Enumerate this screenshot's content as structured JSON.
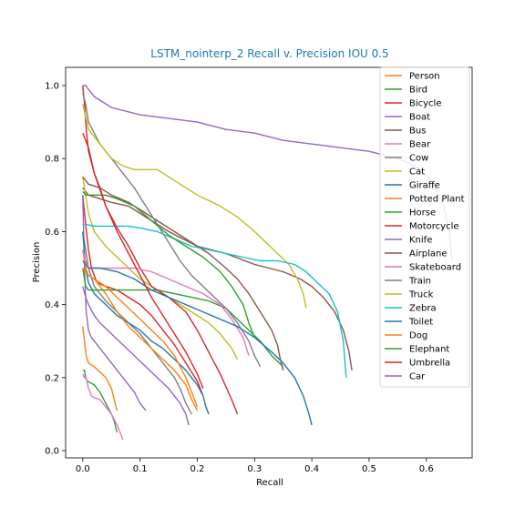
{
  "chart_data": {
    "type": "line",
    "title": "LSTM_nointerp_2 Recall v. Precision IOU 0.5",
    "xlabel": "Recall",
    "ylabel": "Precision",
    "xlim": [
      -0.03,
      0.68
    ],
    "ylim": [
      -0.02,
      1.05
    ],
    "xticks": [
      0.0,
      0.1,
      0.2,
      0.3,
      0.4,
      0.5,
      0.6
    ],
    "xtick_labels": [
      "0.0",
      "0.1",
      "0.2",
      "0.3",
      "0.4",
      "0.5",
      "0.6"
    ],
    "yticks": [
      0.0,
      0.2,
      0.4,
      0.6,
      0.8,
      1.0
    ],
    "ytick_labels": [
      "0.0",
      "0.2",
      "0.4",
      "0.6",
      "0.8",
      "1.0"
    ],
    "grid": false,
    "legend_position": "upper-right",
    "title_color": "#1f77b4",
    "series": [
      {
        "name": "Person",
        "color": "#ff7f0e",
        "x": [
          0.0,
          0.003,
          0.006,
          0.01,
          0.02,
          0.03,
          0.04,
          0.05,
          0.055,
          0.058,
          0.06
        ],
        "y": [
          0.34,
          0.3,
          0.26,
          0.24,
          0.23,
          0.215,
          0.2,
          0.17,
          0.14,
          0.12,
          0.11
        ]
      },
      {
        "name": "Bird",
        "color": "#2ca02c",
        "x": [
          0.0,
          0.003,
          0.005,
          0.008,
          0.02,
          0.03,
          0.04,
          0.05,
          0.055,
          0.058,
          0.06
        ],
        "y": [
          0.22,
          0.22,
          0.2,
          0.19,
          0.18,
          0.16,
          0.13,
          0.1,
          0.08,
          0.06,
          0.05
        ]
      },
      {
        "name": "Bicycle",
        "color": "#d62728",
        "x": [
          0.0,
          0.005,
          0.01,
          0.015,
          0.025,
          0.04,
          0.06,
          0.08,
          0.1,
          0.12,
          0.14,
          0.16,
          0.18,
          0.2,
          0.21
        ],
        "y": [
          0.7,
          0.62,
          0.55,
          0.5,
          0.46,
          0.45,
          0.44,
          0.42,
          0.4,
          0.37,
          0.33,
          0.29,
          0.24,
          0.19,
          0.15
        ]
      },
      {
        "name": "Boat",
        "color": "#9467bd",
        "x": [
          0.0,
          0.003,
          0.006,
          0.01,
          0.015,
          0.02,
          0.03,
          0.05,
          0.07,
          0.09,
          0.1,
          0.11
        ],
        "y": [
          0.7,
          0.5,
          0.38,
          0.33,
          0.31,
          0.3,
          0.28,
          0.24,
          0.2,
          0.16,
          0.13,
          0.11
        ]
      },
      {
        "name": "Bus",
        "color": "#8c564b",
        "x": [
          0.0,
          0.005,
          0.01,
          0.03,
          0.05,
          0.08,
          0.1,
          0.15,
          0.2,
          0.25,
          0.3,
          0.35,
          0.38,
          0.4,
          0.42,
          0.44,
          0.455,
          0.465,
          0.47
        ],
        "y": [
          0.72,
          0.71,
          0.7,
          0.69,
          0.68,
          0.67,
          0.65,
          0.6,
          0.56,
          0.54,
          0.51,
          0.49,
          0.47,
          0.45,
          0.42,
          0.38,
          0.33,
          0.27,
          0.22
        ]
      },
      {
        "name": "Bear",
        "color": "#e377c2",
        "x": [
          0.0,
          0.003,
          0.006,
          0.01,
          0.015,
          0.02,
          0.03,
          0.04,
          0.05,
          0.06,
          0.065,
          0.07
        ],
        "y": [
          0.21,
          0.2,
          0.2,
          0.17,
          0.15,
          0.145,
          0.14,
          0.12,
          0.1,
          0.07,
          0.05,
          0.03
        ]
      },
      {
        "name": "Cow",
        "color": "#7f7f7f",
        "x": [
          0.0,
          0.005,
          0.01,
          0.02,
          0.04,
          0.06,
          0.08,
          0.1,
          0.12,
          0.14,
          0.16,
          0.17,
          0.18,
          0.19
        ],
        "y": [
          0.6,
          0.55,
          0.5,
          0.45,
          0.41,
          0.38,
          0.35,
          0.32,
          0.28,
          0.24,
          0.2,
          0.17,
          0.13,
          0.1
        ]
      },
      {
        "name": "Cat",
        "color": "#bcbd22",
        "x": [
          0.0,
          0.01,
          0.02,
          0.04,
          0.06,
          0.08,
          0.1,
          0.13,
          0.16,
          0.19,
          0.22,
          0.24,
          0.26,
          0.27
        ],
        "y": [
          0.75,
          0.65,
          0.6,
          0.56,
          0.53,
          0.5,
          0.47,
          0.44,
          0.41,
          0.38,
          0.35,
          0.32,
          0.28,
          0.25
        ]
      },
      {
        "name": "Giraffe",
        "color": "#1f77b4",
        "x": [
          0.0,
          0.005,
          0.01,
          0.02,
          0.04,
          0.06,
          0.08,
          0.1,
          0.12,
          0.14,
          0.16,
          0.18,
          0.2,
          0.21,
          0.215,
          0.22
        ],
        "y": [
          0.6,
          0.5,
          0.46,
          0.43,
          0.4,
          0.37,
          0.35,
          0.33,
          0.3,
          0.28,
          0.25,
          0.22,
          0.18,
          0.15,
          0.12,
          0.1
        ]
      },
      {
        "name": "Potted Plant",
        "color": "#ff7f0e",
        "x": [
          0.0,
          0.005,
          0.01,
          0.02,
          0.04,
          0.06,
          0.08,
          0.1,
          0.12,
          0.14,
          0.16,
          0.18,
          0.19,
          0.2
        ],
        "y": [
          0.55,
          0.5,
          0.48,
          0.47,
          0.43,
          0.38,
          0.34,
          0.31,
          0.28,
          0.25,
          0.22,
          0.18,
          0.14,
          0.11
        ]
      },
      {
        "name": "Horse",
        "color": "#2ca02c",
        "x": [
          0.0,
          0.005,
          0.01,
          0.03,
          0.05,
          0.07,
          0.1,
          0.13,
          0.16,
          0.19,
          0.22,
          0.25,
          0.27,
          0.29,
          0.31,
          0.33,
          0.35
        ],
        "y": [
          0.5,
          0.45,
          0.44,
          0.44,
          0.44,
          0.44,
          0.44,
          0.44,
          0.43,
          0.42,
          0.41,
          0.39,
          0.36,
          0.33,
          0.3,
          0.26,
          0.23
        ]
      },
      {
        "name": "Motorcycle",
        "color": "#d62728",
        "x": [
          0.0,
          0.003,
          0.006,
          0.01,
          0.02,
          0.03,
          0.04,
          0.06,
          0.08,
          0.1,
          0.12,
          0.15,
          0.18,
          0.2,
          0.22,
          0.24,
          0.26,
          0.27
        ],
        "y": [
          1.0,
          0.95,
          0.88,
          0.82,
          0.76,
          0.72,
          0.67,
          0.61,
          0.56,
          0.5,
          0.45,
          0.42,
          0.38,
          0.33,
          0.27,
          0.21,
          0.14,
          0.1
        ]
      },
      {
        "name": "Knife",
        "color": "#9467bd",
        "x": [
          0.0,
          0.005,
          0.01,
          0.02,
          0.03,
          0.05,
          0.07,
          0.09,
          0.11,
          0.13,
          0.15,
          0.17,
          0.18,
          0.185
        ],
        "y": [
          0.45,
          0.42,
          0.4,
          0.37,
          0.35,
          0.32,
          0.29,
          0.26,
          0.23,
          0.2,
          0.17,
          0.13,
          0.1,
          0.07
        ]
      },
      {
        "name": "Airplane",
        "color": "#8c564b",
        "x": [
          0.0,
          0.005,
          0.01,
          0.03,
          0.05,
          0.08,
          0.1,
          0.13,
          0.16,
          0.19,
          0.22,
          0.25,
          0.27,
          0.29,
          0.31,
          0.33,
          0.34,
          0.345,
          0.35
        ],
        "y": [
          0.75,
          0.74,
          0.73,
          0.72,
          0.7,
          0.68,
          0.66,
          0.63,
          0.6,
          0.57,
          0.54,
          0.5,
          0.47,
          0.43,
          0.38,
          0.33,
          0.29,
          0.25,
          0.22
        ]
      },
      {
        "name": "Skateboard",
        "color": "#e377c2",
        "x": [
          0.0,
          0.005,
          0.01,
          0.03,
          0.06,
          0.09,
          0.12,
          0.15,
          0.18,
          0.21,
          0.24,
          0.26,
          0.28,
          0.29
        ],
        "y": [
          0.55,
          0.52,
          0.5,
          0.5,
          0.5,
          0.5,
          0.49,
          0.47,
          0.45,
          0.43,
          0.4,
          0.36,
          0.31,
          0.26
        ]
      },
      {
        "name": "Train",
        "color": "#7f7f7f",
        "x": [
          0.0,
          0.005,
          0.01,
          0.02,
          0.03,
          0.05,
          0.07,
          0.09,
          0.11,
          0.13,
          0.15,
          0.17,
          0.19,
          0.21,
          0.23,
          0.25,
          0.27,
          0.29,
          0.3,
          0.31
        ],
        "y": [
          0.98,
          0.95,
          0.9,
          0.87,
          0.84,
          0.8,
          0.76,
          0.72,
          0.67,
          0.62,
          0.57,
          0.52,
          0.48,
          0.45,
          0.42,
          0.39,
          0.35,
          0.3,
          0.26,
          0.23
        ]
      },
      {
        "name": "Truck",
        "color": "#bcbd22",
        "x": [
          0.0,
          0.01,
          0.03,
          0.05,
          0.07,
          0.09,
          0.13,
          0.16,
          0.2,
          0.24,
          0.27,
          0.3,
          0.32,
          0.34,
          0.36,
          0.375,
          0.385,
          0.39
        ],
        "y": [
          0.95,
          0.88,
          0.84,
          0.8,
          0.78,
          0.77,
          0.77,
          0.74,
          0.7,
          0.67,
          0.64,
          0.6,
          0.57,
          0.54,
          0.51,
          0.47,
          0.43,
          0.39
        ]
      },
      {
        "name": "Zebra",
        "color": "#17becf",
        "x": [
          0.0,
          0.005,
          0.02,
          0.05,
          0.08,
          0.1,
          0.13,
          0.16,
          0.19,
          0.22,
          0.25,
          0.28,
          0.31,
          0.34,
          0.37,
          0.39,
          0.41,
          0.43,
          0.445,
          0.455,
          0.46
        ],
        "y": [
          0.62,
          0.62,
          0.615,
          0.615,
          0.615,
          0.61,
          0.6,
          0.58,
          0.56,
          0.55,
          0.54,
          0.53,
          0.52,
          0.52,
          0.51,
          0.49,
          0.46,
          0.43,
          0.38,
          0.3,
          0.2
        ]
      },
      {
        "name": "Toilet",
        "color": "#1f77b4",
        "x": [
          0.0,
          0.005,
          0.01,
          0.03,
          0.06,
          0.09,
          0.12,
          0.15,
          0.18,
          0.21,
          0.24,
          0.27,
          0.3,
          0.33,
          0.35,
          0.37,
          0.385,
          0.395,
          0.4
        ],
        "y": [
          0.52,
          0.51,
          0.5,
          0.5,
          0.49,
          0.47,
          0.44,
          0.42,
          0.4,
          0.38,
          0.36,
          0.34,
          0.31,
          0.27,
          0.24,
          0.2,
          0.15,
          0.1,
          0.07
        ]
      },
      {
        "name": "Dog",
        "color": "#ff7f0e",
        "x": [
          0.0,
          0.005,
          0.01,
          0.02,
          0.04,
          0.06,
          0.08,
          0.1,
          0.12,
          0.14,
          0.16,
          0.18,
          0.19,
          0.2
        ],
        "y": [
          0.5,
          0.49,
          0.48,
          0.47,
          0.45,
          0.42,
          0.39,
          0.36,
          0.33,
          0.3,
          0.26,
          0.2,
          0.16,
          0.12
        ]
      },
      {
        "name": "Elephant",
        "color": "#2ca02c",
        "x": [
          0.0,
          0.005,
          0.02,
          0.04,
          0.06,
          0.09,
          0.12,
          0.15,
          0.18,
          0.21,
          0.24,
          0.26,
          0.28,
          0.29,
          0.3
        ],
        "y": [
          0.71,
          0.7,
          0.7,
          0.7,
          0.69,
          0.67,
          0.63,
          0.59,
          0.56,
          0.53,
          0.49,
          0.45,
          0.4,
          0.35,
          0.31
        ]
      },
      {
        "name": "Umbrella",
        "color": "#d62728",
        "x": [
          0.0,
          0.005,
          0.01,
          0.02,
          0.04,
          0.06,
          0.08,
          0.1,
          0.12,
          0.14,
          0.16,
          0.18,
          0.2,
          0.21
        ],
        "y": [
          0.87,
          0.85,
          0.83,
          0.76,
          0.67,
          0.6,
          0.54,
          0.48,
          0.42,
          0.37,
          0.32,
          0.27,
          0.21,
          0.17
        ]
      },
      {
        "name": "Car",
        "color": "#9467bd",
        "x": [
          0.0,
          0.005,
          0.01,
          0.02,
          0.05,
          0.1,
          0.15,
          0.2,
          0.25,
          0.3,
          0.35,
          0.4,
          0.45,
          0.5,
          0.55,
          0.58,
          0.61,
          0.63,
          0.64,
          0.645
        ],
        "y": [
          1.0,
          1.0,
          0.99,
          0.97,
          0.94,
          0.92,
          0.91,
          0.9,
          0.88,
          0.87,
          0.85,
          0.84,
          0.83,
          0.82,
          0.8,
          0.78,
          0.74,
          0.67,
          0.6,
          0.52
        ]
      }
    ]
  }
}
